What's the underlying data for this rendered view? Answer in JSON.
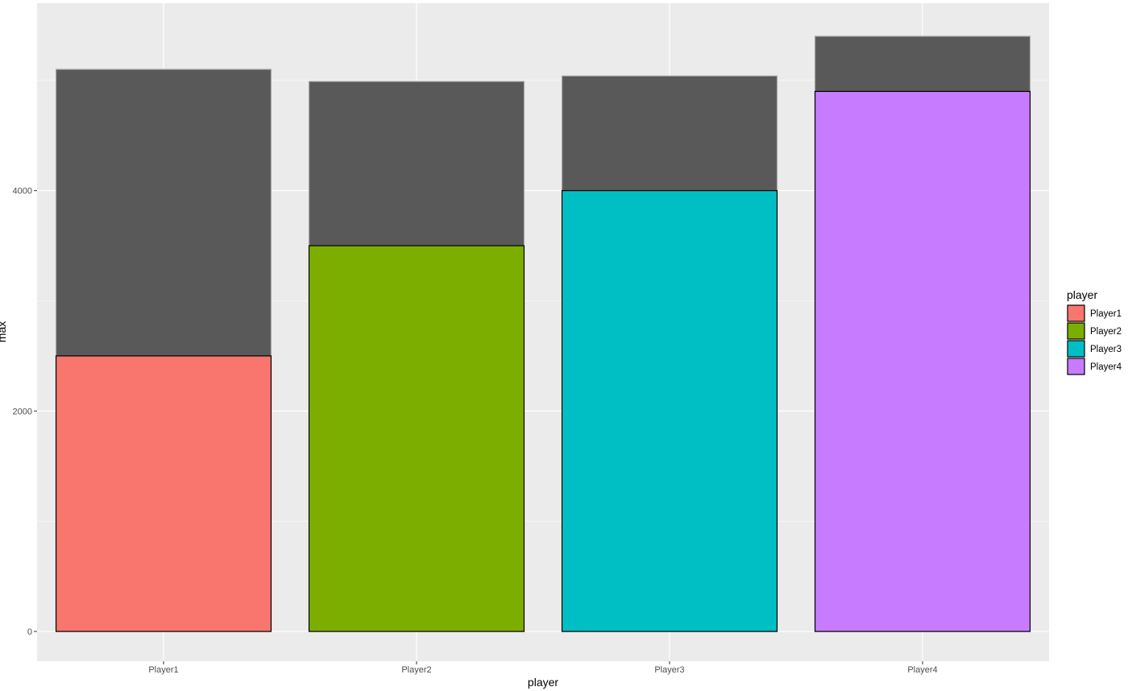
{
  "chart_data": {
    "type": "bar",
    "xlabel": "player",
    "ylabel": "max",
    "categories": [
      "Player1",
      "Player2",
      "Player3",
      "Player4"
    ],
    "ylim": [
      -270,
      5700
    ],
    "y_ticks": [
      0,
      2000,
      4000
    ],
    "y_tick_labels": [
      "0",
      "2000",
      "4000"
    ],
    "grid": true,
    "series": [
      {
        "role": "background max bars",
        "color": "#595959",
        "outline": "#a6a6a6",
        "values": [
          5100,
          4990,
          5040,
          5400
        ]
      },
      {
        "role": "player bars",
        "colors": [
          "#F8766D",
          "#7CAE00",
          "#00BFC4",
          "#C77CFF"
        ],
        "outline": "#000000",
        "values": [
          2500,
          3500,
          4000,
          4900
        ]
      }
    ],
    "legend": {
      "title": "player",
      "position": "right",
      "items": [
        {
          "label": "Player1",
          "color": "#F8766D"
        },
        {
          "label": "Player2",
          "color": "#7CAE00"
        },
        {
          "label": "Player3",
          "color": "#00BFC4"
        },
        {
          "label": "Player4",
          "color": "#C77CFF"
        }
      ]
    },
    "panel_background": "#EBEBEB",
    "grid_color": "#ffffff"
  }
}
